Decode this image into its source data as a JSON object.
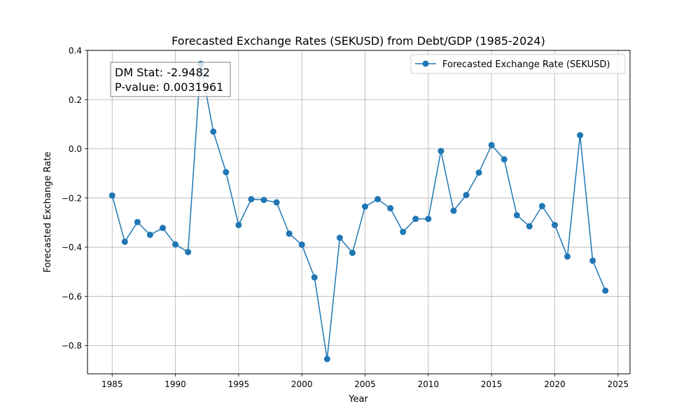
{
  "chart_data": {
    "type": "line",
    "title": "Forecasted Exchange Rates (SEKUSD) from Debt/GDP (1985-2024)",
    "xlabel": "Year",
    "ylabel": "Forecasted Exchange Rate",
    "xlim": [
      1983.05,
      2025.95
    ],
    "ylim": [
      -0.915,
      0.4
    ],
    "xticks": [
      1985,
      1990,
      1995,
      2000,
      2005,
      2010,
      2015,
      2020,
      2025
    ],
    "yticks": [
      0.4,
      0.2,
      0.0,
      -0.2,
      -0.4,
      -0.6,
      -0.8
    ],
    "ytick_labels": [
      "0.4",
      "0.2",
      "0.0",
      "−0.2",
      "−0.4",
      "−0.6",
      "−0.8"
    ],
    "grid": true,
    "legend_position": "top-right",
    "annotation_lines": [
      "DM Stat: -2.9482",
      "P-value: 0.0031961"
    ],
    "series": [
      {
        "name": "Forecasted Exchange Rate (SEKUSD)",
        "color": "#1f77b4",
        "marker": "circle",
        "x": [
          1985,
          1986,
          1987,
          1988,
          1989,
          1990,
          1991,
          1992,
          1993,
          1994,
          1995,
          1996,
          1997,
          1998,
          1999,
          2000,
          2001,
          2002,
          2003,
          2004,
          2005,
          2006,
          2007,
          2008,
          2009,
          2010,
          2011,
          2012,
          2013,
          2014,
          2015,
          2016,
          2017,
          2018,
          2019,
          2020,
          2021,
          2022,
          2023,
          2024
        ],
        "y": [
          -0.19,
          -0.378,
          -0.298,
          -0.35,
          -0.322,
          -0.389,
          -0.42,
          0.345,
          0.07,
          -0.095,
          -0.31,
          -0.205,
          -0.208,
          -0.218,
          -0.345,
          -0.39,
          -0.523,
          -0.855,
          -0.362,
          -0.423,
          -0.235,
          -0.205,
          -0.242,
          -0.338,
          -0.285,
          -0.285,
          -0.009,
          -0.252,
          -0.188,
          -0.097,
          0.015,
          -0.043,
          -0.27,
          -0.315,
          -0.233,
          -0.31,
          -0.438,
          0.055,
          -0.455,
          -0.577
        ]
      }
    ]
  }
}
